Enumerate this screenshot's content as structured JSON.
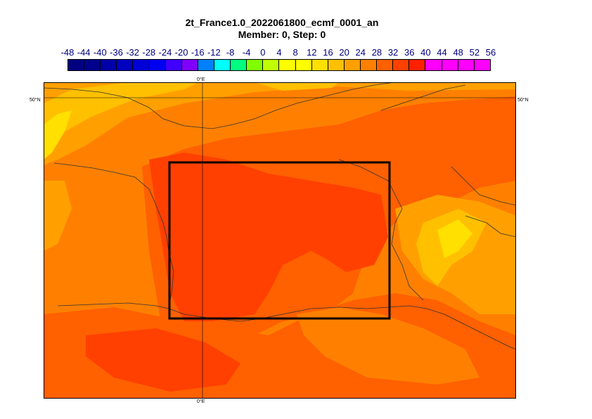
{
  "title": {
    "line1": "2t_France1.0_2022061800_ecmf_0001_an",
    "line2": "Member: 0, Step: 0"
  },
  "colorbar": {
    "ticks": [
      "-48",
      "-44",
      "-40",
      "-36",
      "-32",
      "-28",
      "-24",
      "-20",
      "-16",
      "-12",
      "-8",
      "-4",
      "0",
      "4",
      "8",
      "12",
      "16",
      "20",
      "24",
      "28",
      "32",
      "36",
      "40",
      "44",
      "48",
      "52",
      "56"
    ],
    "colors": [
      "#000080",
      "#00008c",
      "#0000a8",
      "#0000c0",
      "#0000d8",
      "#0000f0",
      "#4000ff",
      "#8000ff",
      "#0080ff",
      "#00ffff",
      "#00ff80",
      "#80ff00",
      "#c0ff00",
      "#ffff00",
      "#ffff00",
      "#ffe000",
      "#ffc000",
      "#ffa000",
      "#ff8000",
      "#ff6000",
      "#ff4000",
      "#ff2000",
      "#ff00ff",
      "#ff00ff",
      "#ff00ff",
      "#ff00ff"
    ]
  },
  "map": {
    "lat_label_left": "50°N",
    "lat_label_right": "50°N",
    "lon_label_top": "0°E",
    "lon_label_bottom": "0°E",
    "region_box": "France"
  }
}
